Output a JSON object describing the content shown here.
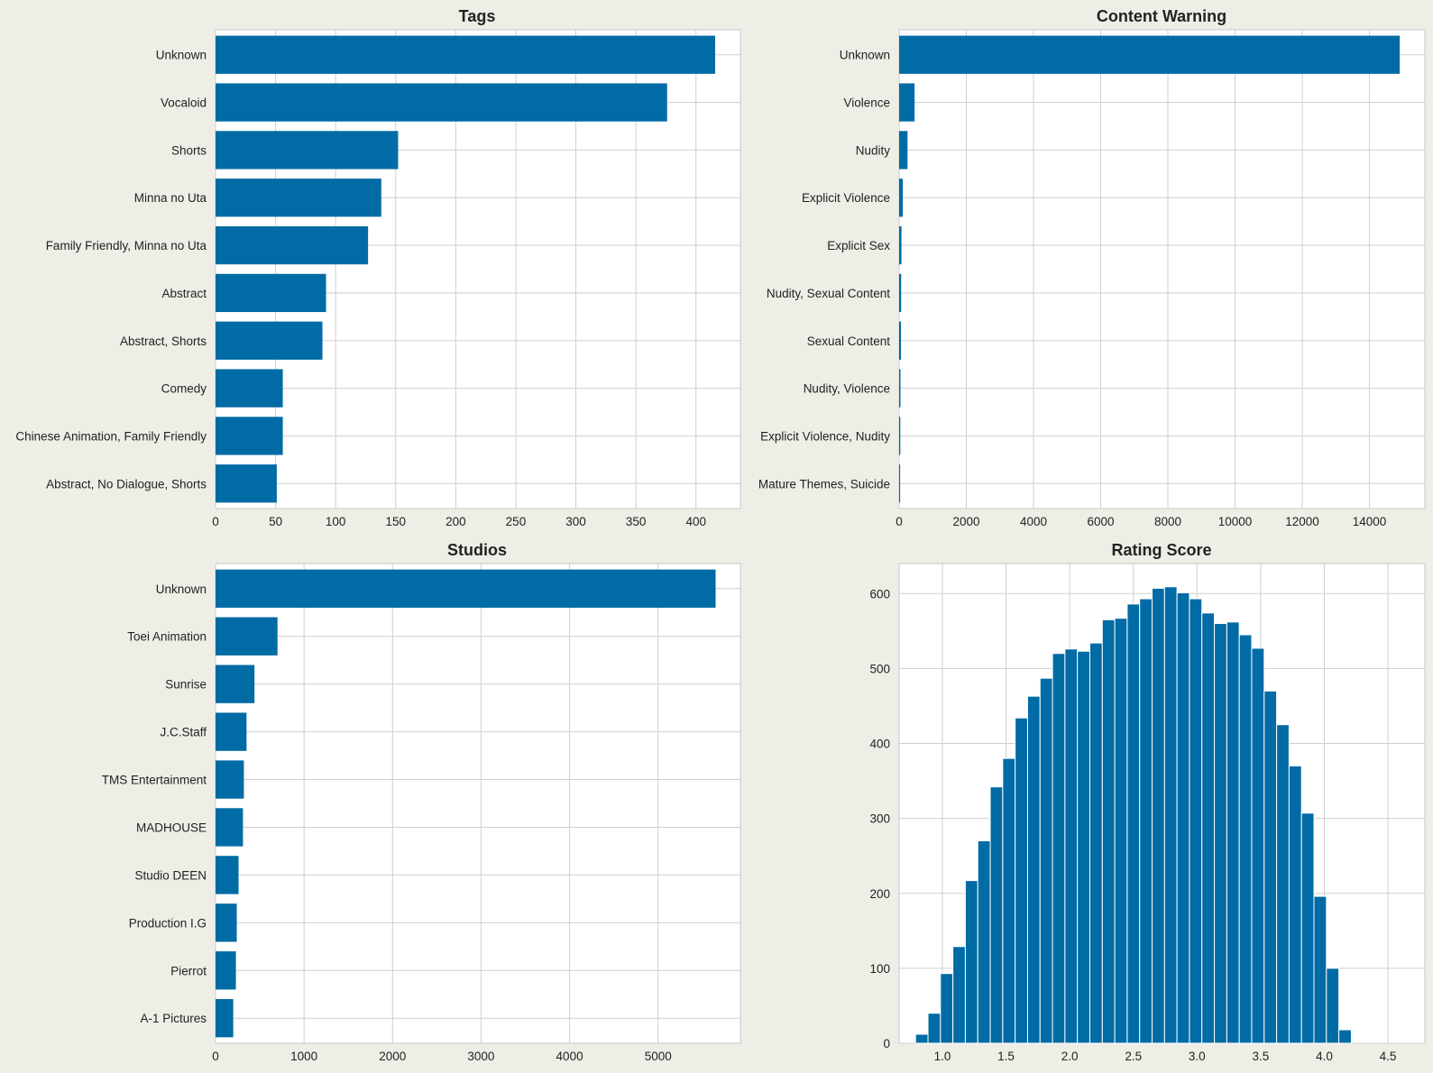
{
  "colors": {
    "bar": "#006ba4",
    "background": "#eeede6",
    "plot_background": "#ffffff",
    "grid": "#cfcfcf"
  },
  "chart_data": [
    {
      "type": "bar",
      "orientation": "horizontal",
      "title": "Tags",
      "categories": [
        "Unknown",
        "Vocaloid",
        "Shorts",
        "Minna no Uta",
        "Family Friendly, Minna no Uta",
        "Abstract",
        "Abstract, Shorts",
        "Comedy",
        "Chinese Animation, Family Friendly",
        "Abstract, No Dialogue, Shorts"
      ],
      "values": [
        416,
        376,
        152,
        138,
        127,
        92,
        89,
        56,
        56,
        51
      ],
      "xlim": [
        0,
        437
      ],
      "xticks": [
        0,
        50,
        100,
        150,
        200,
        250,
        300,
        350,
        400
      ],
      "grid": true
    },
    {
      "type": "bar",
      "orientation": "horizontal",
      "title": "Content Warning",
      "categories": [
        "Unknown",
        "Violence",
        "Nudity",
        "Explicit Violence",
        "Explicit Sex",
        "Nudity, Sexual Content",
        "Sexual Content",
        "Nudity, Violence",
        "Explicit Violence, Nudity",
        "Mature Themes, Suicide"
      ],
      "values": [
        14900,
        460,
        250,
        110,
        70,
        60,
        55,
        40,
        35,
        30
      ],
      "xlim": [
        0,
        15650
      ],
      "xticks": [
        0,
        2000,
        4000,
        6000,
        8000,
        10000,
        12000,
        14000
      ],
      "grid": true
    },
    {
      "type": "bar",
      "orientation": "horizontal",
      "title": "Studios",
      "categories": [
        "Unknown",
        "Toei Animation",
        "Sunrise",
        "J.C.Staff",
        "TMS Entertainment",
        "MADHOUSE",
        "Studio DEEN",
        "Production I.G",
        "Pierrot",
        "A-1 Pictures"
      ],
      "values": [
        5650,
        700,
        440,
        350,
        320,
        310,
        260,
        240,
        230,
        200
      ],
      "xlim": [
        0,
        5930
      ],
      "xticks": [
        0,
        1000,
        2000,
        3000,
        4000,
        5000
      ],
      "grid": true
    },
    {
      "type": "histogram",
      "title": "Rating Score",
      "bin_start": 0.789,
      "bin_width": 0.0978,
      "values": [
        12,
        40,
        93,
        129,
        217,
        270,
        342,
        380,
        434,
        463,
        487,
        520,
        526,
        523,
        534,
        565,
        567,
        586,
        593,
        607,
        609,
        601,
        593,
        574,
        560,
        562,
        545,
        527,
        470,
        425,
        370,
        307,
        196,
        100,
        18
      ],
      "xlim": [
        0.66,
        4.79
      ],
      "ylim": [
        0,
        640
      ],
      "xticks": [
        1.0,
        1.5,
        2.0,
        2.5,
        3.0,
        3.5,
        4.0,
        4.5
      ],
      "xtick_labels": [
        "1.0",
        "1.5",
        "2.0",
        "2.5",
        "3.0",
        "3.5",
        "4.0",
        "4.5"
      ],
      "yticks": [
        0,
        100,
        200,
        300,
        400,
        500,
        600
      ],
      "grid": true
    }
  ]
}
